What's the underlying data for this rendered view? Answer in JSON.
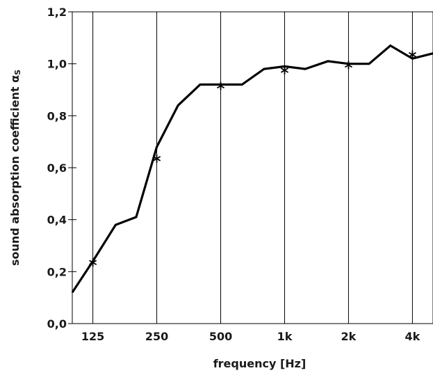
{
  "chart_data": {
    "type": "line",
    "xlabel": "frequency [Hz]",
    "ylabel": "sound absorption coefficient α",
    "ylabel_subscript": "S",
    "x_scale": "log",
    "xlim": [
      100,
      5000
    ],
    "ylim": [
      0,
      1.2
    ],
    "grid": {
      "x": true,
      "y": false
    },
    "x_ticks": [
      {
        "value": 125,
        "label": "125"
      },
      {
        "value": 250,
        "label": "250"
      },
      {
        "value": 500,
        "label": "500"
      },
      {
        "value": 1000,
        "label": "1k"
      },
      {
        "value": 2000,
        "label": "2k"
      },
      {
        "value": 4000,
        "label": "4k"
      }
    ],
    "y_ticks": [
      {
        "value": 0.0,
        "label": "0,0"
      },
      {
        "value": 0.2,
        "label": "0,2"
      },
      {
        "value": 0.4,
        "label": "0,4"
      },
      {
        "value": 0.6,
        "label": "0,6"
      },
      {
        "value": 0.8,
        "label": "0,8"
      },
      {
        "value": 1.0,
        "label": "1,0"
      },
      {
        "value": 1.2,
        "label": "1,2"
      }
    ],
    "series": [
      {
        "style": "line",
        "color": "#000000",
        "x": [
          100,
          125,
          160,
          200,
          250,
          315,
          400,
          500,
          630,
          800,
          1000,
          1250,
          1600,
          2000,
          2500,
          3150,
          4000,
          5000
        ],
        "y": [
          0.12,
          0.24,
          0.38,
          0.41,
          0.68,
          0.84,
          0.92,
          0.92,
          0.92,
          0.98,
          0.99,
          0.98,
          1.01,
          1.0,
          1.0,
          1.07,
          1.02,
          1.04
        ]
      },
      {
        "style": "markers",
        "marker": "asterisk",
        "color": "#000000",
        "x": [
          125,
          250,
          500,
          1000,
          2000,
          4000
        ],
        "y": [
          0.235,
          0.635,
          0.915,
          0.975,
          0.995,
          1.035
        ]
      }
    ]
  }
}
